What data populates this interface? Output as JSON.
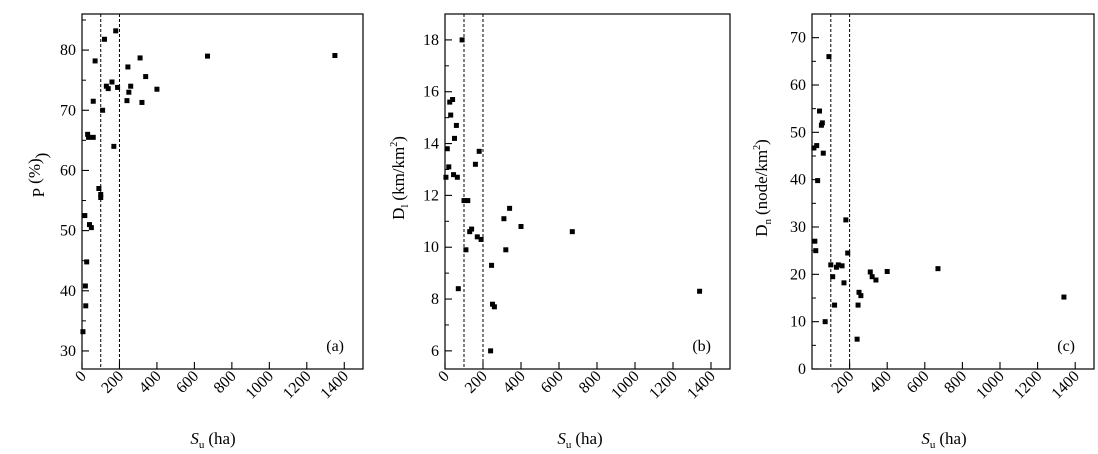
{
  "chart_data": [
    {
      "type": "scatter",
      "panel_label": "(a)",
      "ylabel": {
        "main": "P",
        "sub": "",
        "unit": "(%)",
        "sup": ""
      },
      "xlabel": {
        "main": "S",
        "sub": "u",
        "unit": "(ha)"
      },
      "xlim": [
        0,
        1500
      ],
      "ylim": [
        27,
        86
      ],
      "xticks": [
        0,
        200,
        400,
        600,
        800,
        1000,
        1200,
        1400
      ],
      "xtick_labels": [
        "0",
        "200",
        "400",
        "600",
        "800",
        "1000",
        "1200",
        "1400"
      ],
      "yticks": [
        30,
        40,
        50,
        60,
        70,
        80
      ],
      "ytick_labels": [
        "30",
        "40",
        "50",
        "60",
        "70",
        "80"
      ],
      "ytick_minor": [
        35,
        45,
        55,
        65,
        75,
        85
      ],
      "vlines": [
        100,
        200
      ],
      "x": [
        5,
        15,
        18,
        20,
        25,
        30,
        35,
        40,
        50,
        60,
        60,
        70,
        90,
        100,
        100,
        110,
        120,
        130,
        140,
        160,
        170,
        180,
        190,
        240,
        245,
        250,
        260,
        310,
        320,
        340,
        400,
        670,
        1350
      ],
      "y": [
        33.2,
        52.5,
        40.8,
        37.5,
        44.8,
        66.0,
        65.5,
        51.0,
        50.5,
        65.5,
        71.5,
        78.2,
        57.0,
        56.0,
        55.5,
        70.0,
        81.8,
        74.0,
        73.6,
        74.7,
        64.0,
        83.2,
        73.8,
        71.6,
        77.2,
        73.0,
        74.0,
        78.7,
        71.3,
        75.6,
        73.5,
        79.0,
        79.1
      ]
    },
    {
      "type": "scatter",
      "panel_label": "(b)",
      "ylabel": {
        "main": "D",
        "sub": "l",
        "unit": "(km/km",
        "sup": "2"
      },
      "xlabel": {
        "main": "S",
        "sub": "u",
        "unit": "(ha)"
      },
      "xlim": [
        0,
        1500
      ],
      "ylim": [
        5.3,
        19.0
      ],
      "xticks": [
        0,
        200,
        400,
        600,
        800,
        1000,
        1200,
        1400
      ],
      "xtick_labels": [
        "0",
        "200",
        "400",
        "600",
        "800",
        "1000",
        "1200",
        "1400"
      ],
      "yticks": [
        6,
        8,
        10,
        12,
        14,
        16,
        18
      ],
      "ytick_labels": [
        "6",
        "8",
        "10",
        "12",
        "14",
        "16",
        "18"
      ],
      "ytick_minor": [
        7,
        9,
        11,
        13,
        15,
        17
      ],
      "vlines": [
        100,
        200
      ],
      "x": [
        5,
        12,
        20,
        25,
        30,
        40,
        45,
        50,
        60,
        65,
        70,
        90,
        100,
        110,
        120,
        130,
        140,
        160,
        170,
        180,
        190,
        240,
        245,
        250,
        260,
        310,
        320,
        340,
        400,
        670,
        1340
      ],
      "y": [
        12.7,
        13.8,
        13.1,
        15.6,
        15.1,
        15.7,
        12.8,
        14.2,
        14.7,
        12.7,
        8.4,
        18.0,
        11.8,
        9.9,
        11.8,
        10.6,
        10.7,
        13.2,
        10.4,
        13.7,
        10.3,
        6.0,
        9.3,
        7.8,
        7.7,
        11.1,
        9.9,
        11.5,
        10.8,
        10.6,
        8.3
      ]
    },
    {
      "type": "scatter",
      "panel_label": "(c)",
      "ylabel": {
        "main": "D",
        "sub": "n",
        "unit": "(node/km",
        "sup": "2"
      },
      "xlabel": {
        "main": "S",
        "sub": "u",
        "unit": "(ha)"
      },
      "xlim": [
        0,
        1500
      ],
      "ylim": [
        0,
        75
      ],
      "xticks": [
        200,
        400,
        600,
        800,
        1000,
        1200,
        1400
      ],
      "xtick_labels": [
        "200",
        "400",
        "600",
        "800",
        "1000",
        "1200",
        "1400"
      ],
      "yticks": [
        0,
        10,
        20,
        30,
        40,
        50,
        60,
        70
      ],
      "ytick_labels": [
        "0",
        "10",
        "20",
        "30",
        "40",
        "50",
        "60",
        "70"
      ],
      "ytick_minor": [
        5,
        15,
        25,
        35,
        45,
        55,
        65
      ],
      "vlines": [
        100,
        200
      ],
      "x": [
        10,
        15,
        20,
        25,
        30,
        40,
        50,
        55,
        60,
        70,
        90,
        100,
        110,
        120,
        130,
        140,
        160,
        170,
        180,
        190,
        240,
        245,
        250,
        260,
        310,
        320,
        340,
        400,
        670,
        1340
      ],
      "y": [
        46.7,
        27.0,
        25.0,
        47.2,
        39.8,
        54.5,
        51.5,
        52.0,
        45.6,
        10.0,
        66.0,
        22.0,
        19.5,
        13.5,
        21.5,
        22.0,
        21.8,
        18.2,
        31.5,
        24.5,
        6.3,
        13.5,
        16.2,
        15.5,
        20.5,
        19.5,
        18.8,
        20.6,
        21.2,
        15.2
      ]
    }
  ]
}
